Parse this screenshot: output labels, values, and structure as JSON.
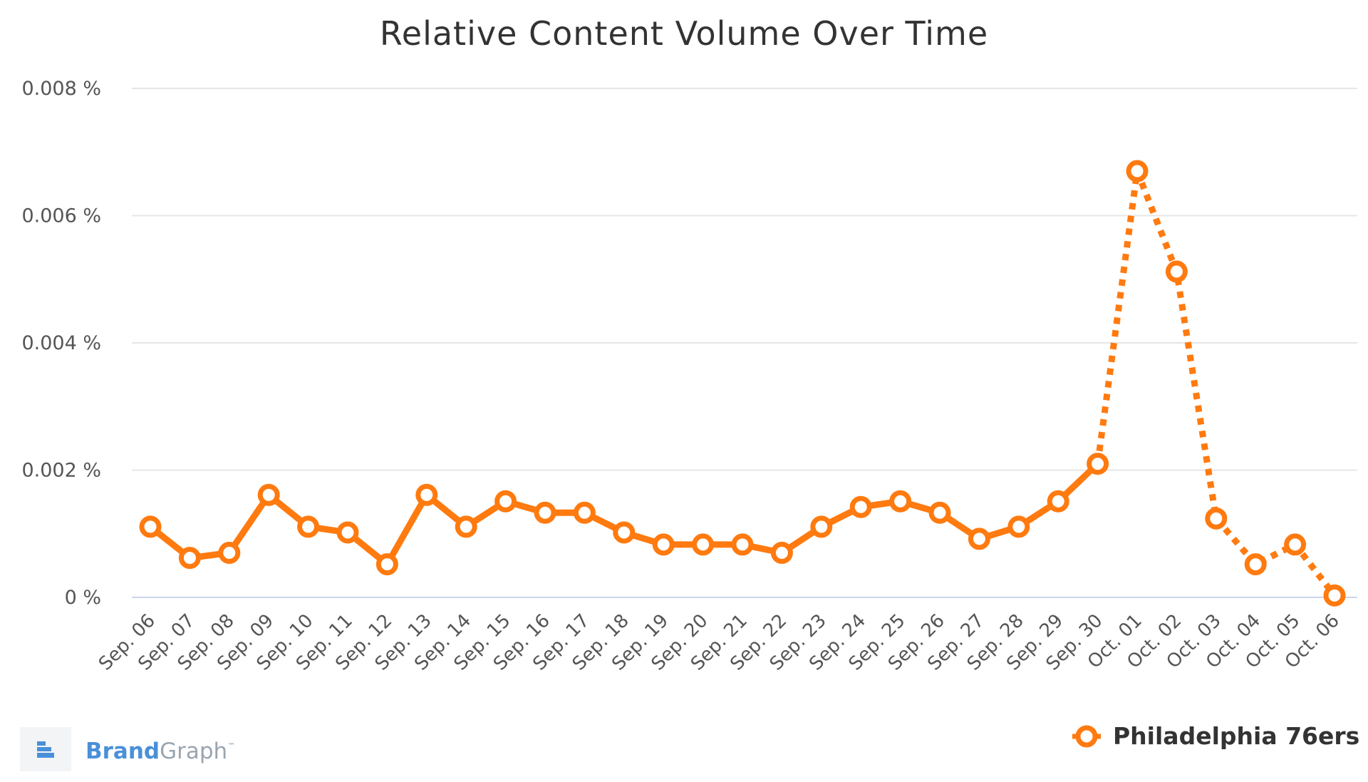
{
  "chart_data": {
    "type": "line",
    "title": "Relative Content Volume Over Time",
    "categories": [
      "Sep. 06",
      "Sep. 07",
      "Sep. 08",
      "Sep. 09",
      "Sep. 10",
      "Sep. 11",
      "Sep. 12",
      "Sep. 13",
      "Sep. 14",
      "Sep. 15",
      "Sep. 16",
      "Sep. 17",
      "Sep. 18",
      "Sep. 19",
      "Sep. 20",
      "Sep. 21",
      "Sep. 22",
      "Sep. 23",
      "Sep. 24",
      "Sep. 25",
      "Sep. 26",
      "Sep. 27",
      "Sep. 28",
      "Sep. 29",
      "Sep. 30",
      "Oct. 01",
      "Oct. 02",
      "Oct. 03",
      "Oct. 04",
      "Oct. 05",
      "Oct. 06"
    ],
    "series": [
      {
        "name": "Philadelphia 76ers",
        "color": "#ff7a0f",
        "values": [
          0.00111,
          0.00062,
          0.0007,
          0.00161,
          0.00111,
          0.00102,
          0.00052,
          0.00161,
          0.00111,
          0.00151,
          0.00133,
          0.00133,
          0.00102,
          0.00083,
          0.00083,
          0.00083,
          0.0007,
          0.00111,
          0.00142,
          0.00151,
          0.00133,
          0.00092,
          0.00111,
          0.00151,
          0.0021,
          0.0067,
          0.00512,
          0.00124,
          0.00052,
          0.00083,
          3e-05
        ],
        "dashed_from_index": 24
      }
    ],
    "yticks": [
      "0 %",
      "0.002 %",
      "0.004 %",
      "0.006 %",
      "0.008 %"
    ],
    "ylim": [
      0,
      0.008
    ],
    "grid": true,
    "legend_position": "bottom-right"
  },
  "branding": {
    "name_part1": "Brand",
    "name_part2": "Graph",
    "trademark": "™"
  },
  "colors": {
    "grid": "#e6e6e6",
    "axis": "#ccd6eb",
    "brand_blue": "#4a90d9"
  }
}
